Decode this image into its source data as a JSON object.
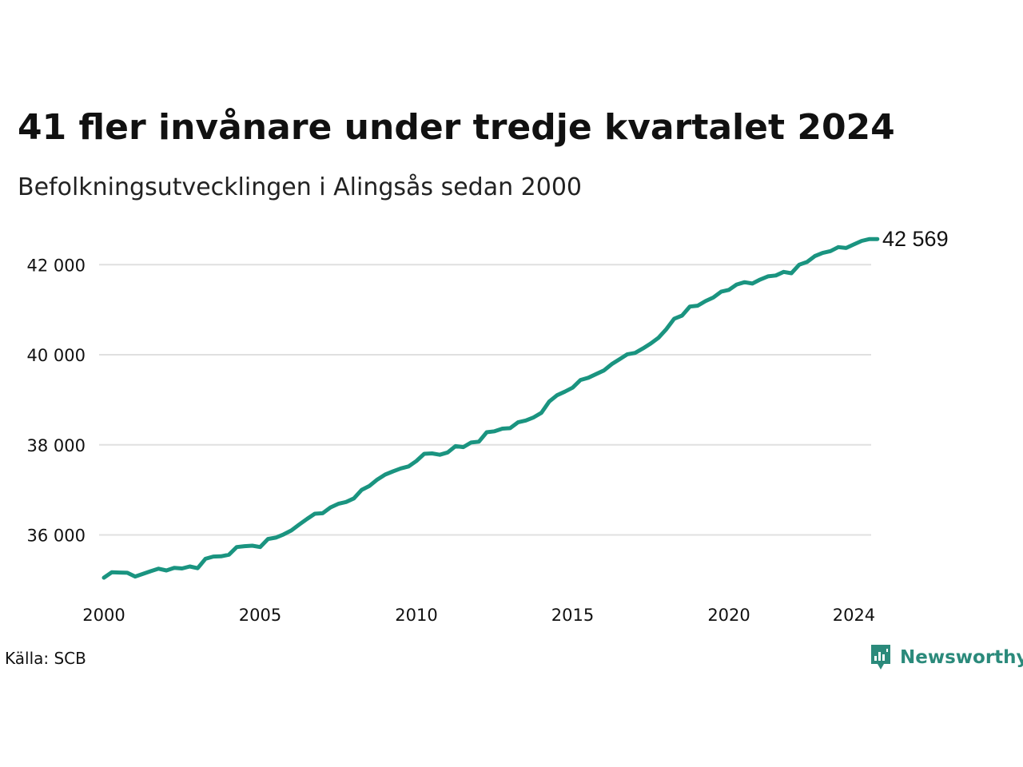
{
  "title": "41 fler invånare under tredje kvartalet 2024",
  "subtitle": "Befolkningsutvecklingen i Alingsås sedan 2000",
  "source": "Källa: SCB",
  "brand": "Newsworthy",
  "colors": {
    "line": "#1a9480",
    "grid": "#e0e0e0",
    "brand": "#2b8a7b",
    "text": "#111111"
  },
  "chart_data": {
    "type": "line",
    "title": "41 fler invånare under tredje kvartalet 2024",
    "subtitle": "Befolkningsutvecklingen i Alingsås sedan 2000",
    "xlabel": "",
    "ylabel": "",
    "grid": true,
    "xlim": [
      2000.0,
      2024.75
    ],
    "ylim": [
      34700,
      42700
    ],
    "x_ticks": [
      2000,
      2005,
      2010,
      2015,
      2020,
      2024
    ],
    "x_tick_labels": [
      "2000",
      "2005",
      "2010",
      "2015",
      "2020",
      "2024"
    ],
    "y_ticks": [
      36000,
      38000,
      40000,
      42000
    ],
    "y_tick_labels": [
      "36 000",
      "38 000",
      "40 000",
      "42 000"
    ],
    "end_label": "42 569",
    "series": [
      {
        "x": [
          2000.0,
          2000.25,
          2000.5,
          2000.75,
          2001.0,
          2001.25,
          2001.5,
          2001.75,
          2002.0,
          2002.25,
          2002.5,
          2002.75,
          2003.0,
          2003.25,
          2003.5,
          2003.75,
          2004.0,
          2004.25,
          2004.5,
          2004.75,
          2005.0,
          2005.25,
          2005.5,
          2005.75,
          2006.0,
          2006.25,
          2006.5,
          2006.75,
          2007.0,
          2007.25,
          2007.5,
          2007.75,
          2008.0,
          2008.25,
          2008.5,
          2008.75,
          2009.0,
          2009.25,
          2009.5,
          2009.75,
          2010.0,
          2010.25,
          2010.5,
          2010.75,
          2011.0,
          2011.25,
          2011.5,
          2011.75,
          2012.0,
          2012.25,
          2012.5,
          2012.75,
          2013.0,
          2013.25,
          2013.5,
          2013.75,
          2014.0,
          2014.25,
          2014.5,
          2014.75,
          2015.0,
          2015.25,
          2015.5,
          2015.75,
          2016.0,
          2016.25,
          2016.5,
          2016.75,
          2017.0,
          2017.25,
          2017.5,
          2017.75,
          2018.0,
          2018.25,
          2018.5,
          2018.75,
          2019.0,
          2019.25,
          2019.5,
          2019.75,
          2020.0,
          2020.25,
          2020.5,
          2020.75,
          2021.0,
          2021.25,
          2021.5,
          2021.75,
          2022.0,
          2022.25,
          2022.5,
          2022.75,
          2023.0,
          2023.25,
          2023.5,
          2023.75,
          2024.0,
          2024.25,
          2024.5,
          2024.75
        ],
        "values": [
          35050,
          35170,
          35165,
          35160,
          35075,
          35135,
          35195,
          35250,
          35210,
          35270,
          35255,
          35300,
          35260,
          35470,
          35520,
          35525,
          35560,
          35730,
          35750,
          35760,
          35730,
          35910,
          35940,
          36010,
          36100,
          36230,
          36355,
          36470,
          36480,
          36610,
          36690,
          36730,
          36810,
          37000,
          37090,
          37230,
          37340,
          37410,
          37475,
          37520,
          37640,
          37800,
          37810,
          37780,
          37830,
          37970,
          37950,
          38050,
          38070,
          38280,
          38300,
          38360,
          38370,
          38500,
          38540,
          38610,
          38710,
          38960,
          39100,
          39180,
          39270,
          39440,
          39490,
          39570,
          39650,
          39790,
          39900,
          40010,
          40040,
          40140,
          40250,
          40380,
          40570,
          40800,
          40870,
          41070,
          41090,
          41190,
          41270,
          41400,
          41440,
          41560,
          41610,
          41580,
          41670,
          41740,
          41760,
          41840,
          41810,
          42000,
          42060,
          42190,
          42260,
          42300,
          42390,
          42370,
          42450,
          42528,
          42569,
          42569
        ]
      }
    ]
  }
}
